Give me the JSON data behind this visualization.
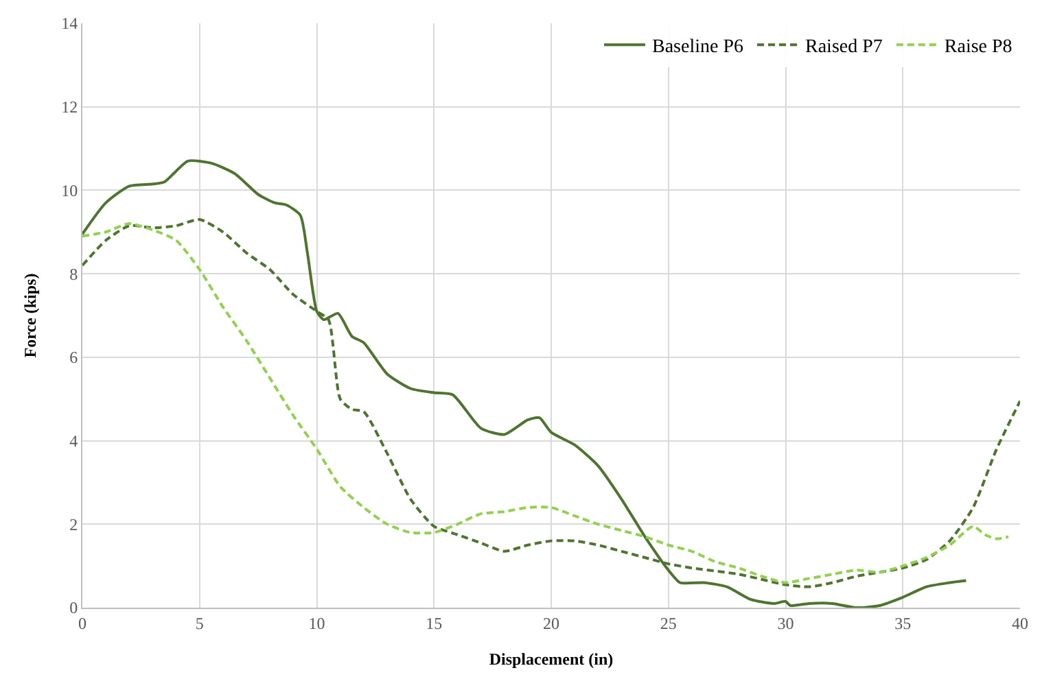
{
  "chart_data": {
    "type": "line",
    "xlabel": "Displacement (in)",
    "ylabel": "Force (kips)",
    "xlim": [
      0,
      40
    ],
    "xticks": [
      0,
      5,
      10,
      15,
      20,
      25,
      30,
      35,
      40
    ],
    "ylim": [
      0,
      14
    ],
    "yticks": [
      0,
      2,
      4,
      6,
      8,
      10,
      12,
      14
    ],
    "grid": true,
    "legend": "top right",
    "series": [
      {
        "name": "Baseline P6",
        "color": "#4e7430",
        "line_style": "solid",
        "x": [
          0,
          1,
          2,
          3,
          3.5,
          4.5,
          5.5,
          6.5,
          7.5,
          8.2,
          8.7,
          9.3,
          9.6,
          10,
          10.3,
          10.9,
          11.5,
          12,
          13,
          14,
          15,
          15.8,
          17,
          18,
          19,
          19.5,
          20,
          21,
          22,
          23,
          24,
          25,
          25.5,
          26.5,
          27.5,
          28.5,
          29.5,
          30,
          30.2,
          31,
          32,
          33,
          34,
          35,
          36,
          37,
          37.7
        ],
        "values": [
          8.95,
          9.7,
          10.1,
          10.15,
          10.2,
          10.7,
          10.65,
          10.4,
          9.9,
          9.7,
          9.65,
          9.4,
          8.5,
          7.1,
          6.9,
          7.05,
          6.5,
          6.35,
          5.6,
          5.25,
          5.15,
          5.1,
          4.3,
          4.15,
          4.5,
          4.55,
          4.2,
          3.9,
          3.4,
          2.6,
          1.7,
          0.9,
          0.6,
          0.6,
          0.5,
          0.2,
          0.1,
          0.15,
          0.05,
          0.1,
          0.1,
          0.0,
          0.05,
          0.25,
          0.5,
          0.6,
          0.65
        ]
      },
      {
        "name": "Raised P7",
        "color": "#4e7430",
        "line_style": "dashed",
        "x": [
          0,
          1,
          2,
          3,
          4,
          5,
          6,
          7,
          8,
          9,
          10,
          10.5,
          11,
          11.5,
          12,
          13,
          14,
          15,
          16,
          17,
          18,
          19,
          20,
          21,
          22,
          23,
          24,
          25,
          26,
          28,
          30,
          31,
          32,
          33,
          34,
          35,
          36,
          37,
          38,
          39,
          40
        ],
        "values": [
          8.2,
          8.8,
          9.15,
          9.1,
          9.15,
          9.3,
          9.0,
          8.5,
          8.1,
          7.5,
          7.1,
          6.9,
          5.0,
          4.75,
          4.7,
          3.7,
          2.6,
          1.95,
          1.75,
          1.55,
          1.35,
          1.5,
          1.6,
          1.6,
          1.5,
          1.35,
          1.2,
          1.05,
          0.95,
          0.8,
          0.55,
          0.5,
          0.6,
          0.75,
          0.85,
          0.95,
          1.15,
          1.6,
          2.4,
          3.8,
          4.95
        ]
      },
      {
        "name": "Raise P8",
        "color": "#92d050",
        "line_style": "dashed",
        "x": [
          0,
          1,
          2,
          3,
          4,
          5,
          6,
          7,
          8,
          9,
          10,
          11,
          12,
          13,
          14,
          15,
          16,
          17,
          18,
          19,
          20,
          21,
          22,
          23,
          24,
          25,
          26,
          27,
          28,
          29,
          30,
          31,
          32,
          33,
          34,
          35,
          36,
          37,
          38,
          38.5,
          39,
          39.5
        ],
        "values": [
          8.9,
          9.0,
          9.2,
          9.05,
          8.8,
          8.1,
          7.2,
          6.4,
          5.5,
          4.6,
          3.8,
          2.9,
          2.4,
          2.0,
          1.8,
          1.8,
          2.0,
          2.25,
          2.3,
          2.4,
          2.4,
          2.2,
          2.0,
          1.85,
          1.7,
          1.5,
          1.35,
          1.1,
          0.95,
          0.75,
          0.6,
          0.7,
          0.8,
          0.9,
          0.85,
          1.0,
          1.2,
          1.5,
          1.95,
          1.75,
          1.65,
          1.7
        ]
      }
    ]
  }
}
